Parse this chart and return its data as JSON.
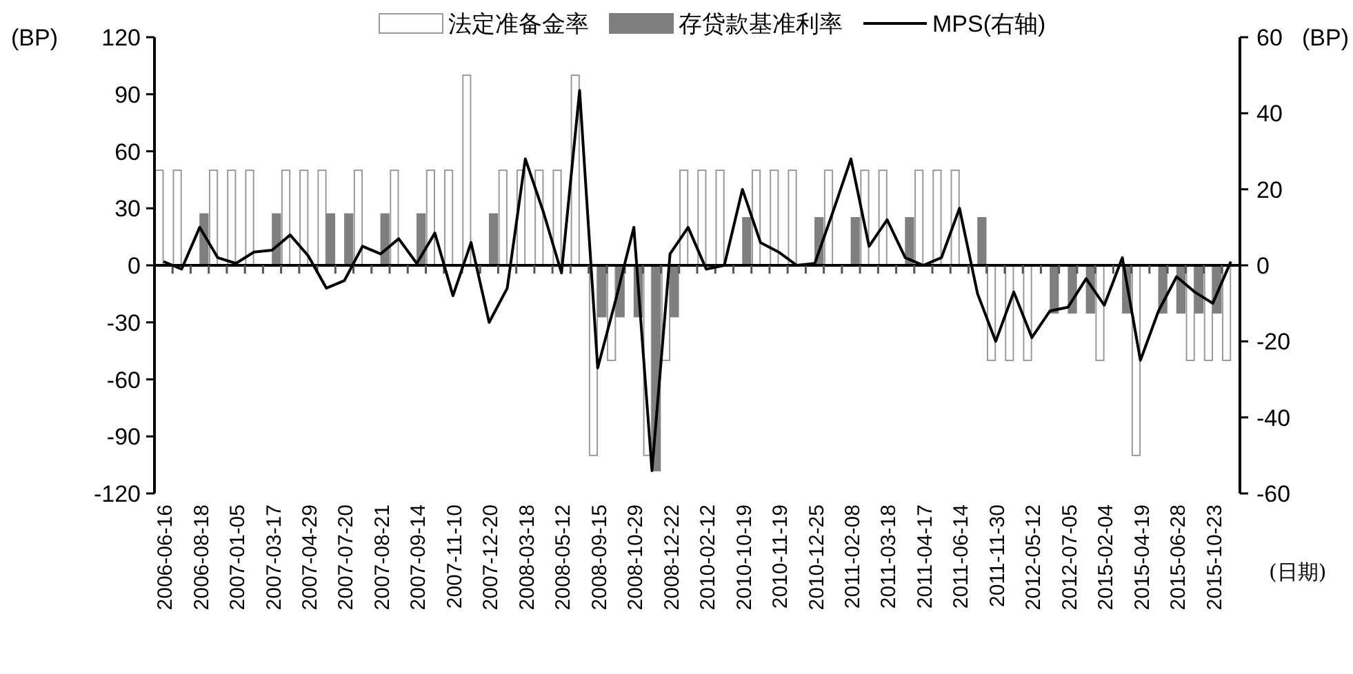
{
  "chart_data": {
    "type": "bar",
    "ylabel": "(BP)",
    "y2label": "(BP)",
    "xlabel": "(日期)",
    "categories": [
      "2006-06-16",
      null,
      "2006-08-18",
      null,
      "2007-01-05",
      null,
      "2007-03-17",
      null,
      "2007-04-29",
      null,
      "2007-07-20",
      null,
      "2007-08-21",
      null,
      "2007-09-14",
      null,
      "2007-11-10",
      null,
      "2007-12-20",
      null,
      "2008-03-18",
      null,
      "2008-05-12",
      null,
      "2008-09-15",
      null,
      "2008-10-29",
      null,
      "2008-12-22",
      null,
      "2010-02-12",
      null,
      "2010-10-19",
      null,
      "2010-11-19",
      null,
      "2010-12-25",
      null,
      "2011-02-08",
      null,
      "2011-03-18",
      null,
      "2011-04-17",
      null,
      "2011-06-14",
      null,
      "2011-11-30",
      null,
      "2012-05-12",
      null,
      "2012-07-05",
      null,
      "2015-02-04",
      null,
      "2015-04-19",
      null,
      "2015-06-28",
      null,
      "2015-10-23",
      null
    ],
    "series": [
      {
        "name": "法定准备金率",
        "color": "#ffffff",
        "values": [
          50,
          50,
          null,
          50,
          50,
          50,
          null,
          50,
          50,
          50,
          null,
          50,
          null,
          50,
          null,
          50,
          50,
          100,
          null,
          50,
          50,
          50,
          50,
          100,
          -100,
          -50,
          null,
          -100,
          -50,
          50,
          50,
          50,
          null,
          50,
          50,
          50,
          null,
          50,
          null,
          50,
          50,
          null,
          50,
          50,
          50,
          null,
          -50,
          -50,
          -50,
          null,
          null,
          null,
          -50,
          null,
          -100,
          null,
          null,
          -50,
          -50,
          -50
        ]
      },
      {
        "name": "存贷款基准利率",
        "color": "#7f7f7f",
        "values": [
          null,
          null,
          27,
          null,
          null,
          null,
          27,
          null,
          null,
          27,
          27,
          null,
          27,
          null,
          27,
          null,
          null,
          null,
          27,
          null,
          null,
          null,
          null,
          null,
          -27,
          -27,
          -27,
          -108,
          -27,
          null,
          null,
          null,
          25,
          null,
          null,
          null,
          25,
          null,
          25,
          null,
          null,
          25,
          null,
          null,
          null,
          25,
          null,
          null,
          null,
          -25,
          -25,
          -25,
          null,
          -25,
          null,
          -25,
          -25,
          -25,
          -25,
          null
        ]
      },
      {
        "name": "MPS(右轴)",
        "type": "line",
        "axis": "y2",
        "color": "#000000",
        "values": [
          1,
          -1,
          10,
          2,
          0.5,
          3.5,
          4,
          8,
          2.5,
          -6,
          -4,
          5,
          3,
          7,
          0.5,
          8.5,
          -8,
          6,
          -15,
          -6,
          28,
          14,
          -2,
          46,
          -27,
          -9,
          10,
          -54,
          3,
          10,
          -1,
          0,
          20,
          6,
          3.5,
          0,
          0.5,
          14,
          28,
          5,
          12,
          2,
          0,
          2,
          15,
          -7.5,
          -20,
          -7,
          -19,
          -12,
          -11,
          -3.5,
          -10.5,
          2,
          -25,
          -12,
          -3,
          -7,
          -10,
          1
        ]
      }
    ],
    "ylim": [
      -120,
      120
    ],
    "yticks": [
      -120,
      -90,
      -60,
      -30,
      0,
      30,
      60,
      90,
      120
    ],
    "y2lim": [
      -60,
      60
    ],
    "y2ticks": [
      -60,
      -40,
      -20,
      0,
      20,
      40,
      60
    ],
    "legend": "top"
  }
}
